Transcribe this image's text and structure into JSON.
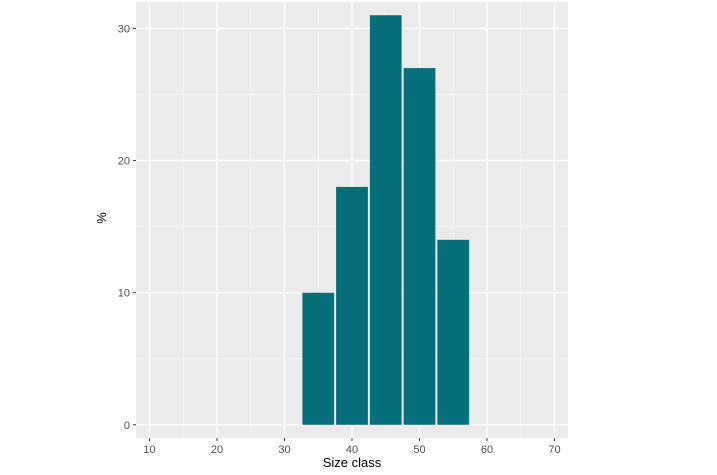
{
  "chart_data": {
    "type": "bar",
    "title": "",
    "xlabel": "Size class",
    "ylabel": "%",
    "bin_width": 5,
    "x": [
      35,
      40,
      45,
      50,
      55
    ],
    "values": [
      10,
      18,
      31,
      27,
      14
    ],
    "xlim": [
      8,
      72
    ],
    "ylim": [
      -1,
      32
    ],
    "x_ticks": [
      10,
      20,
      30,
      40,
      50,
      60,
      70
    ],
    "y_ticks": [
      0,
      10,
      20,
      30
    ],
    "x_tick_labels": [
      "10",
      "20",
      "30",
      "40",
      "50",
      "60",
      "70"
    ],
    "y_tick_labels": [
      "0",
      "10",
      "20",
      "30"
    ],
    "grid": true,
    "colors": {
      "bar": "#06707a",
      "panel": "#ebebeb",
      "grid_major": "#ffffff",
      "grid_minor": "#f5f5f5"
    }
  }
}
